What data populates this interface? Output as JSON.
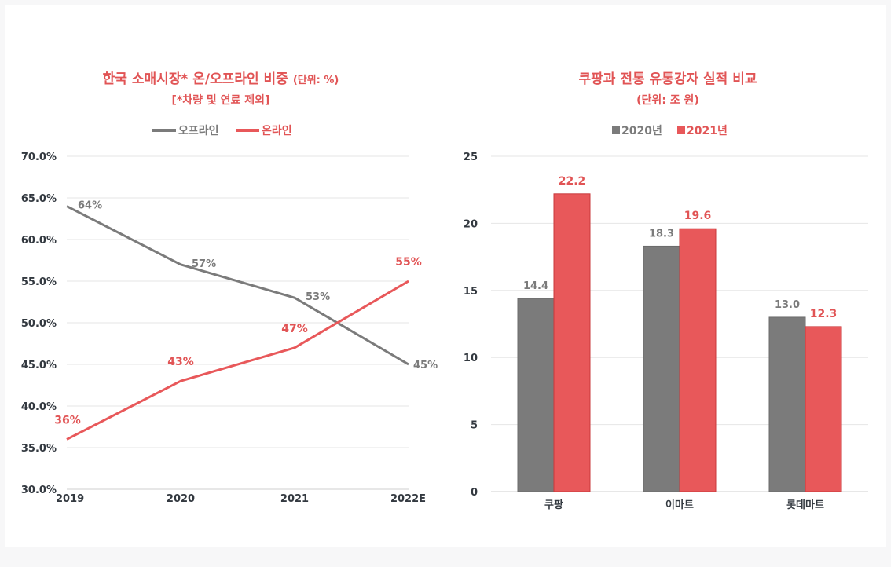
{
  "chart_data": [
    {
      "type": "line",
      "title": "한국 소매시장* 온/오프라인 비중",
      "title_unit": "(단위: %)",
      "subtitle": "[*차량 및 연료 제외]",
      "categories": [
        "2019",
        "2020",
        "2021",
        "2022E"
      ],
      "y_ticks": [
        "30.0%",
        "35.0%",
        "40.0%",
        "45.0%",
        "50.0%",
        "55.0%",
        "60.0%",
        "65.0%",
        "70.0%"
      ],
      "ylim": [
        30,
        70
      ],
      "grid": true,
      "legend_position": "top-center",
      "series": [
        {
          "name": "오프라인",
          "color": "#7b7b7b",
          "values": [
            64,
            57,
            53,
            45
          ],
          "labels": [
            "64%",
            "57%",
            "53%",
            "45%"
          ]
        },
        {
          "name": "온라인",
          "color": "#e8585a",
          "values": [
            36,
            43,
            47,
            55
          ],
          "labels": [
            "36%",
            "43%",
            "47%",
            "55%"
          ]
        }
      ]
    },
    {
      "type": "bar",
      "title": "쿠팡과 전통 유통강자 실적 비교",
      "subtitle": "(단위: 조 원)",
      "categories": [
        "쿠팡",
        "이마트",
        "롯데마트"
      ],
      "y_ticks": [
        "0",
        "5",
        "10",
        "15",
        "20",
        "25"
      ],
      "ylim": [
        0,
        25
      ],
      "grid": true,
      "legend_position": "top-center",
      "series": [
        {
          "name": "2020년",
          "color": "#7b7b7b",
          "values": [
            14.4,
            18.3,
            13.0
          ],
          "labels": [
            "14.4",
            "18.3",
            "13.0"
          ]
        },
        {
          "name": "2021년",
          "color": "#e8585a",
          "values": [
            22.2,
            19.6,
            12.3
          ],
          "labels": [
            "22.2",
            "19.6",
            "12.3"
          ]
        }
      ]
    }
  ]
}
